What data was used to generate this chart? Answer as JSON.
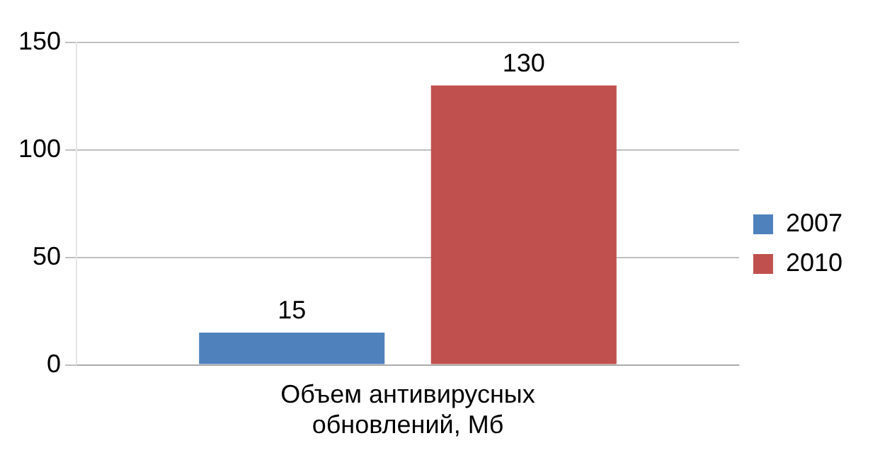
{
  "chart_data": {
    "type": "bar",
    "categories": [
      "Объем антивирусных обновлений, Мб"
    ],
    "series": [
      {
        "name": "2007",
        "color": "#4f81bd",
        "values": [
          15
        ]
      },
      {
        "name": "2010",
        "color": "#c0504d",
        "values": [
          130
        ]
      }
    ],
    "ylim": [
      0,
      150
    ],
    "yticks": [
      0,
      50,
      100,
      150
    ],
    "grid": "y",
    "legend": "right",
    "data_labels": true
  }
}
